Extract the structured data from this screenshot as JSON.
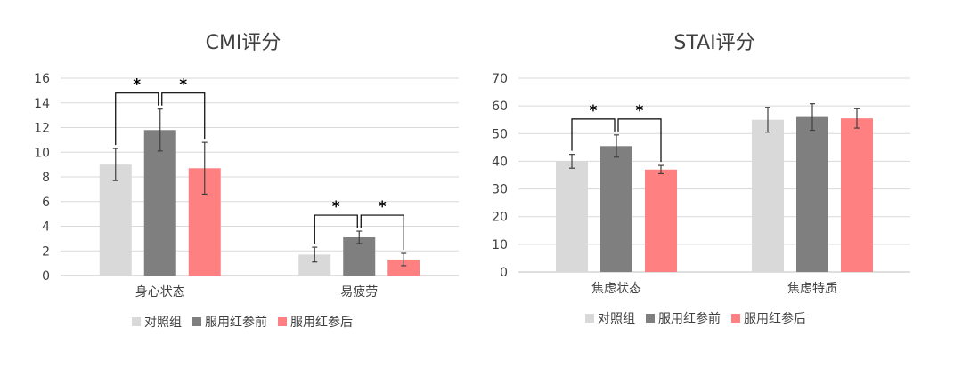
{
  "colors": {
    "control": "#d9d9d9",
    "before": "#7f7f7f",
    "after": "#ff8080",
    "grid": "#d9d9d9",
    "axis": "#bfbfbf",
    "text": "#404040",
    "errorbar": "#404040",
    "bracket": "#000000"
  },
  "chart_data": [
    {
      "type": "bar",
      "title": "CMI评分",
      "categories": [
        "身心状态",
        "易疲劳"
      ],
      "yticks": [
        0,
        2,
        4,
        6,
        8,
        10,
        12,
        14,
        16
      ],
      "ylim": [
        0,
        16
      ],
      "grid": true,
      "legend_position": "bottom",
      "series": [
        {
          "name": "对照组",
          "values": [
            9.0,
            1.7
          ],
          "errors": [
            1.3,
            0.6
          ]
        },
        {
          "name": "服用红参前",
          "values": [
            11.8,
            3.1
          ],
          "errors": [
            1.7,
            0.5
          ]
        },
        {
          "name": "服用红参后",
          "values": [
            8.7,
            1.3
          ],
          "errors": [
            2.1,
            0.5
          ]
        }
      ],
      "significance": [
        {
          "category": 0,
          "from": 0,
          "to": 1,
          "label": "*"
        },
        {
          "category": 0,
          "from": 1,
          "to": 2,
          "label": "*"
        },
        {
          "category": 1,
          "from": 0,
          "to": 1,
          "label": "*"
        },
        {
          "category": 1,
          "from": 1,
          "to": 2,
          "label": "*"
        }
      ]
    },
    {
      "type": "bar",
      "title": "STAI评分",
      "categories": [
        "焦虑状态",
        "焦虑特质"
      ],
      "yticks": [
        0,
        10,
        20,
        30,
        40,
        50,
        60,
        70
      ],
      "ylim": [
        0,
        70
      ],
      "grid": true,
      "legend_position": "bottom",
      "series": [
        {
          "name": "对照组",
          "values": [
            40.0,
            55.0
          ],
          "errors": [
            2.5,
            4.5
          ]
        },
        {
          "name": "服用红参前",
          "values": [
            45.5,
            56.0
          ],
          "errors": [
            4.0,
            4.8
          ]
        },
        {
          "name": "服用红参后",
          "values": [
            37.0,
            55.5
          ],
          "errors": [
            1.5,
            3.5
          ]
        }
      ],
      "significance": [
        {
          "category": 0,
          "from": 0,
          "to": 1,
          "label": "*"
        },
        {
          "category": 0,
          "from": 1,
          "to": 2,
          "label": "*"
        }
      ]
    }
  ]
}
